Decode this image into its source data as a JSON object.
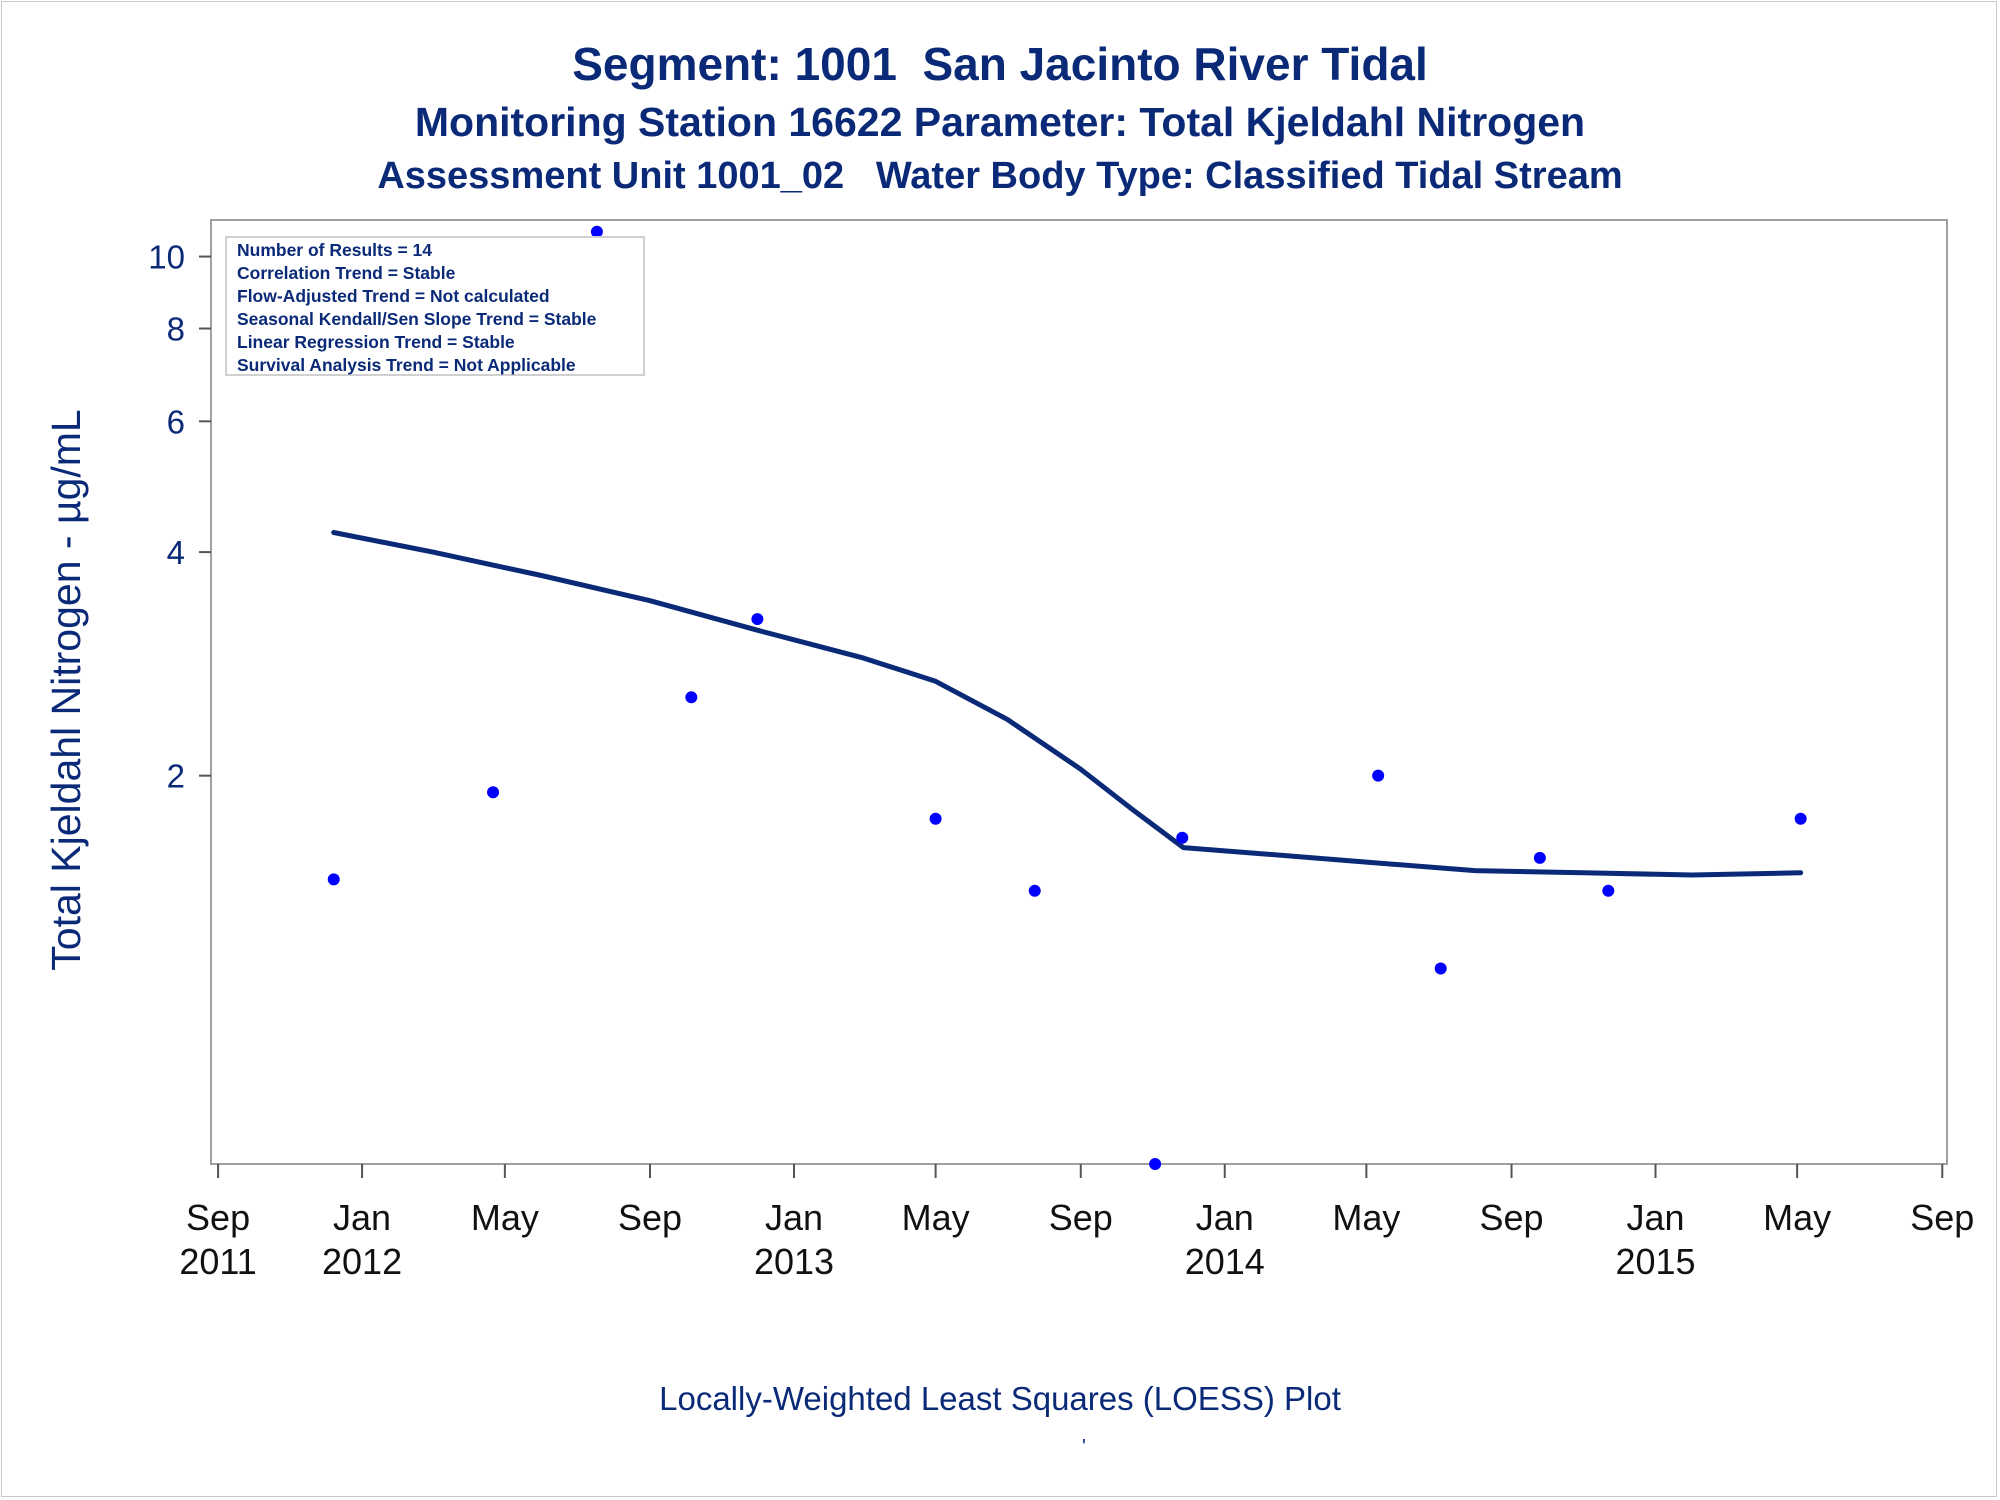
{
  "chart_data": {
    "type": "scatter",
    "title": "Segment: 1001  San Jacinto River Tidal",
    "subtitle": "Monitoring Station 16622 Parameter: Total Kjeldahl Nitrogen",
    "subtitle2": "Assessment Unit 1001_02   Water Body Type: Classified Tidal Stream",
    "ylabel": "Total Kjeldahl Nitrogen -  µg/mL",
    "xlabel": "",
    "footnote": "Locally-Weighted Least Squares (LOESS) Plot",
    "footnote_mark": "'",
    "y_scale": "log",
    "ylim": [
      0.6,
      11.2
    ],
    "xlim": [
      "2011-08-26",
      "2015-09-05"
    ],
    "grid": false,
    "stats_box": [
      "Number of Results = 14",
      "Correlation Trend = Stable",
      "Flow-Adjusted Trend = Not calculated",
      "Seasonal Kendall/Sen Slope Trend = Stable",
      "Linear Regression Trend = Stable",
      "Survival Analysis Trend = Not Applicable"
    ],
    "y_ticks": [
      {
        "value": 2,
        "label": "2"
      },
      {
        "value": 4,
        "label": "4"
      },
      {
        "value": 6,
        "label": "6"
      },
      {
        "value": 8,
        "label": "8"
      },
      {
        "value": 10,
        "label": "10"
      }
    ],
    "x_ticks": [
      {
        "date": "2011-09-01",
        "month": "Sep",
        "year": "2011"
      },
      {
        "date": "2012-01-01",
        "month": "Jan",
        "year": "2012"
      },
      {
        "date": "2012-05-01",
        "month": "May",
        "year": ""
      },
      {
        "date": "2012-09-01",
        "month": "Sep",
        "year": ""
      },
      {
        "date": "2013-01-01",
        "month": "Jan",
        "year": "2013"
      },
      {
        "date": "2013-05-01",
        "month": "May",
        "year": ""
      },
      {
        "date": "2013-09-01",
        "month": "Sep",
        "year": ""
      },
      {
        "date": "2014-01-01",
        "month": "Jan",
        "year": "2014"
      },
      {
        "date": "2014-05-01",
        "month": "May",
        "year": ""
      },
      {
        "date": "2014-09-01",
        "month": "Sep",
        "year": ""
      },
      {
        "date": "2015-01-01",
        "month": "Jan",
        "year": "2015"
      },
      {
        "date": "2015-05-01",
        "month": "May",
        "year": ""
      },
      {
        "date": "2015-09-01",
        "month": "Sep",
        "year": ""
      }
    ],
    "series": [
      {
        "kind": "points",
        "color": "#0000ff",
        "points": [
          {
            "x": "2011-12-08",
            "y": 1.45
          },
          {
            "x": "2012-04-21",
            "y": 1.9
          },
          {
            "x": "2012-07-18",
            "y": 10.8
          },
          {
            "x": "2012-10-06",
            "y": 2.55
          },
          {
            "x": "2012-12-01",
            "y": 3.25
          },
          {
            "x": "2013-05-01",
            "y": 1.75
          },
          {
            "x": "2013-07-24",
            "y": 1.4
          },
          {
            "x": "2013-11-03",
            "y": 0.6
          },
          {
            "x": "2013-11-26",
            "y": 1.65
          },
          {
            "x": "2014-05-11",
            "y": 2.0
          },
          {
            "x": "2014-07-03",
            "y": 1.1
          },
          {
            "x": "2014-09-25",
            "y": 1.55
          },
          {
            "x": "2014-11-22",
            "y": 1.4
          },
          {
            "x": "2015-05-04",
            "y": 1.75
          }
        ]
      },
      {
        "kind": "loess",
        "color": "#0a2a78",
        "points": [
          {
            "x": "2011-12-08",
            "y": 4.25
          },
          {
            "x": "2012-03-01",
            "y": 4.0
          },
          {
            "x": "2012-06-01",
            "y": 3.72
          },
          {
            "x": "2012-09-01",
            "y": 3.44
          },
          {
            "x": "2012-12-01",
            "y": 3.14
          },
          {
            "x": "2013-03-01",
            "y": 2.88
          },
          {
            "x": "2013-05-01",
            "y": 2.68
          },
          {
            "x": "2013-07-01",
            "y": 2.38
          },
          {
            "x": "2013-09-01",
            "y": 2.04
          },
          {
            "x": "2013-10-15",
            "y": 1.8
          },
          {
            "x": "2013-11-27",
            "y": 1.6
          },
          {
            "x": "2014-02-01",
            "y": 1.57
          },
          {
            "x": "2014-05-01",
            "y": 1.53
          },
          {
            "x": "2014-08-01",
            "y": 1.49
          },
          {
            "x": "2014-11-01",
            "y": 1.48
          },
          {
            "x": "2015-02-01",
            "y": 1.47
          },
          {
            "x": "2015-05-04",
            "y": 1.48
          }
        ]
      }
    ]
  }
}
